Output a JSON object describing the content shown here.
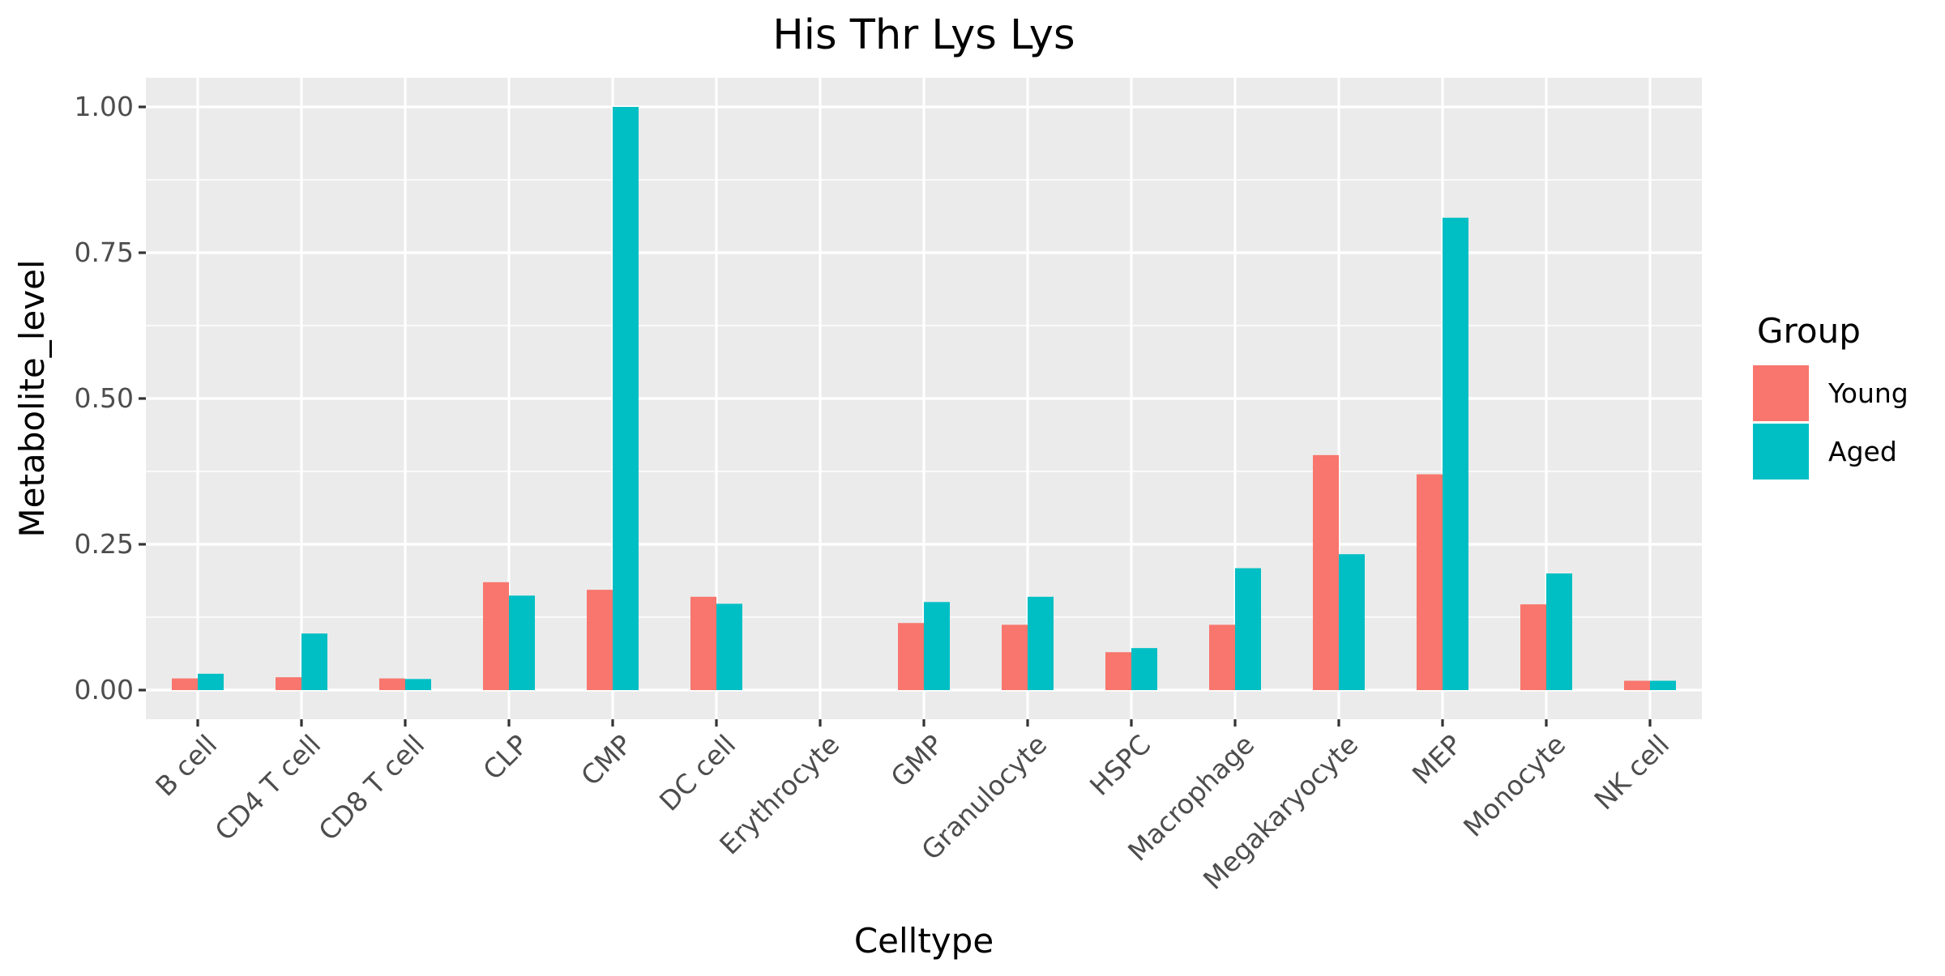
{
  "chart_data": {
    "type": "bar",
    "title": "His Thr Lys Lys",
    "xlabel": "Celltype",
    "ylabel": "Metabolite_level",
    "ylim": [
      -0.05,
      1.05
    ],
    "yticks": [
      0.0,
      0.25,
      0.5,
      0.75,
      1.0
    ],
    "ytick_labels": [
      "0.00",
      "0.25",
      "0.50",
      "0.75",
      "1.00"
    ],
    "grid": true,
    "legend": {
      "title": "Group",
      "position": "right"
    },
    "categories": [
      "B cell",
      "CD4 T cell",
      "CD8 T cell",
      "CLP",
      "CMP",
      "DC cell",
      "Erythrocyte",
      "GMP",
      "Granulocyte",
      "HSPC",
      "Macrophage",
      "Megakaryocyte",
      "MEP",
      "Monocyte",
      "NK cell"
    ],
    "series": [
      {
        "name": "Young",
        "color": "#F8766D",
        "values": [
          0.02,
          0.022,
          0.02,
          0.185,
          0.172,
          0.16,
          0.0,
          0.115,
          0.112,
          0.065,
          0.112,
          0.403,
          0.37,
          0.147,
          0.016
        ]
      },
      {
        "name": "Aged",
        "color": "#00BFC4",
        "values": [
          0.028,
          0.097,
          0.019,
          0.162,
          1.0,
          0.148,
          0.0,
          0.151,
          0.16,
          0.072,
          0.209,
          0.233,
          0.81,
          0.2,
          0.016
        ]
      }
    ]
  }
}
